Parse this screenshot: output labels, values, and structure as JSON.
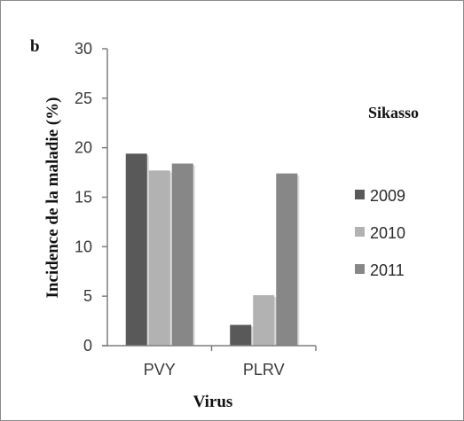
{
  "chart_data": {
    "type": "bar",
    "panel_label": "b",
    "categories": [
      "PVY",
      "PLRV"
    ],
    "series": [
      {
        "name": "2009",
        "values": [
          19.4,
          2.1
        ],
        "color": "#595959"
      },
      {
        "name": "2010",
        "values": [
          17.7,
          5.1
        ],
        "color": "#b2b2b2"
      },
      {
        "name": "2011",
        "values": [
          18.4,
          17.4
        ],
        "color": "#878787"
      }
    ],
    "xlabel": "Virus",
    "ylabel": "Incidence de la maladie (%)",
    "ylim": [
      0,
      30
    ],
    "yticks": [
      0,
      5,
      10,
      15,
      20,
      25,
      30
    ],
    "legend_title": "Sikasso",
    "legend_position": "right",
    "grid": false
  }
}
